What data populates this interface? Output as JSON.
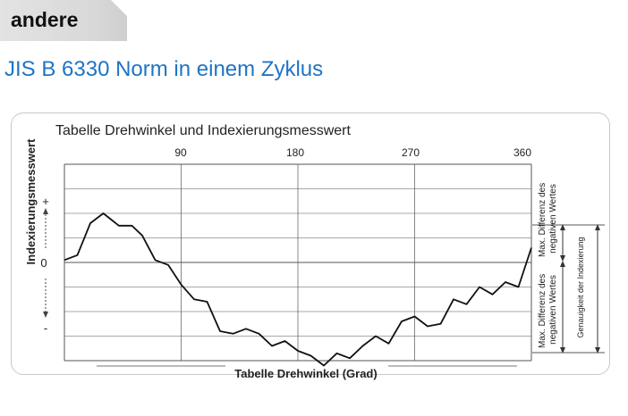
{
  "header": {
    "tag_label": "andere",
    "headline": "JIS B 6330 Norm in einem Zyklus"
  },
  "colors": {
    "headline": "#1f74c4",
    "line": "#111111",
    "grid": "#555555"
  },
  "chart_data": {
    "type": "line",
    "title": "Tabelle Drehwinkel und Indexierungsmesswert",
    "xlabel": "Tabelle Drehwinkel (Grad)",
    "ylabel": "Indexierungsmesswert",
    "x_ticks": [
      "90",
      "180",
      "270",
      "360"
    ],
    "y_marks": {
      "plus": "+",
      "zero": "0",
      "minus": "-"
    },
    "xlim": [
      0,
      360
    ],
    "ylim": [
      -4,
      4
    ],
    "grid": true,
    "right_annotations": {
      "max_negative_upper": "Max. Differenz des negativen Wertes",
      "max_negative_lower": "Max. Differenz des negativen Wertes",
      "accuracy": "Genauigkeit der Indexierung"
    },
    "series": [
      {
        "values": [
          [
            0,
            0.1
          ],
          [
            10,
            0.3
          ],
          [
            20,
            1.6
          ],
          [
            30,
            2.0
          ],
          [
            42,
            1.5
          ],
          [
            52,
            1.5
          ],
          [
            60,
            1.1
          ],
          [
            70,
            0.1
          ],
          [
            80,
            -0.1
          ],
          [
            90,
            -0.9
          ],
          [
            100,
            -1.5
          ],
          [
            110,
            -1.6
          ],
          [
            120,
            -2.8
          ],
          [
            130,
            -2.9
          ],
          [
            140,
            -2.7
          ],
          [
            150,
            -2.9
          ],
          [
            160,
            -3.4
          ],
          [
            170,
            -3.2
          ],
          [
            180,
            -3.6
          ],
          [
            190,
            -3.8
          ],
          [
            200,
            -4.2
          ],
          [
            210,
            -3.7
          ],
          [
            220,
            -3.9
          ],
          [
            230,
            -3.4
          ],
          [
            240,
            -3.0
          ],
          [
            250,
            -3.3
          ],
          [
            260,
            -2.4
          ],
          [
            270,
            -2.2
          ],
          [
            280,
            -2.6
          ],
          [
            290,
            -2.5
          ],
          [
            300,
            -1.5
          ],
          [
            310,
            -1.7
          ],
          [
            320,
            -1.0
          ],
          [
            330,
            -1.3
          ],
          [
            340,
            -0.8
          ],
          [
            350,
            -1.0
          ],
          [
            360,
            0.6
          ]
        ]
      }
    ]
  }
}
